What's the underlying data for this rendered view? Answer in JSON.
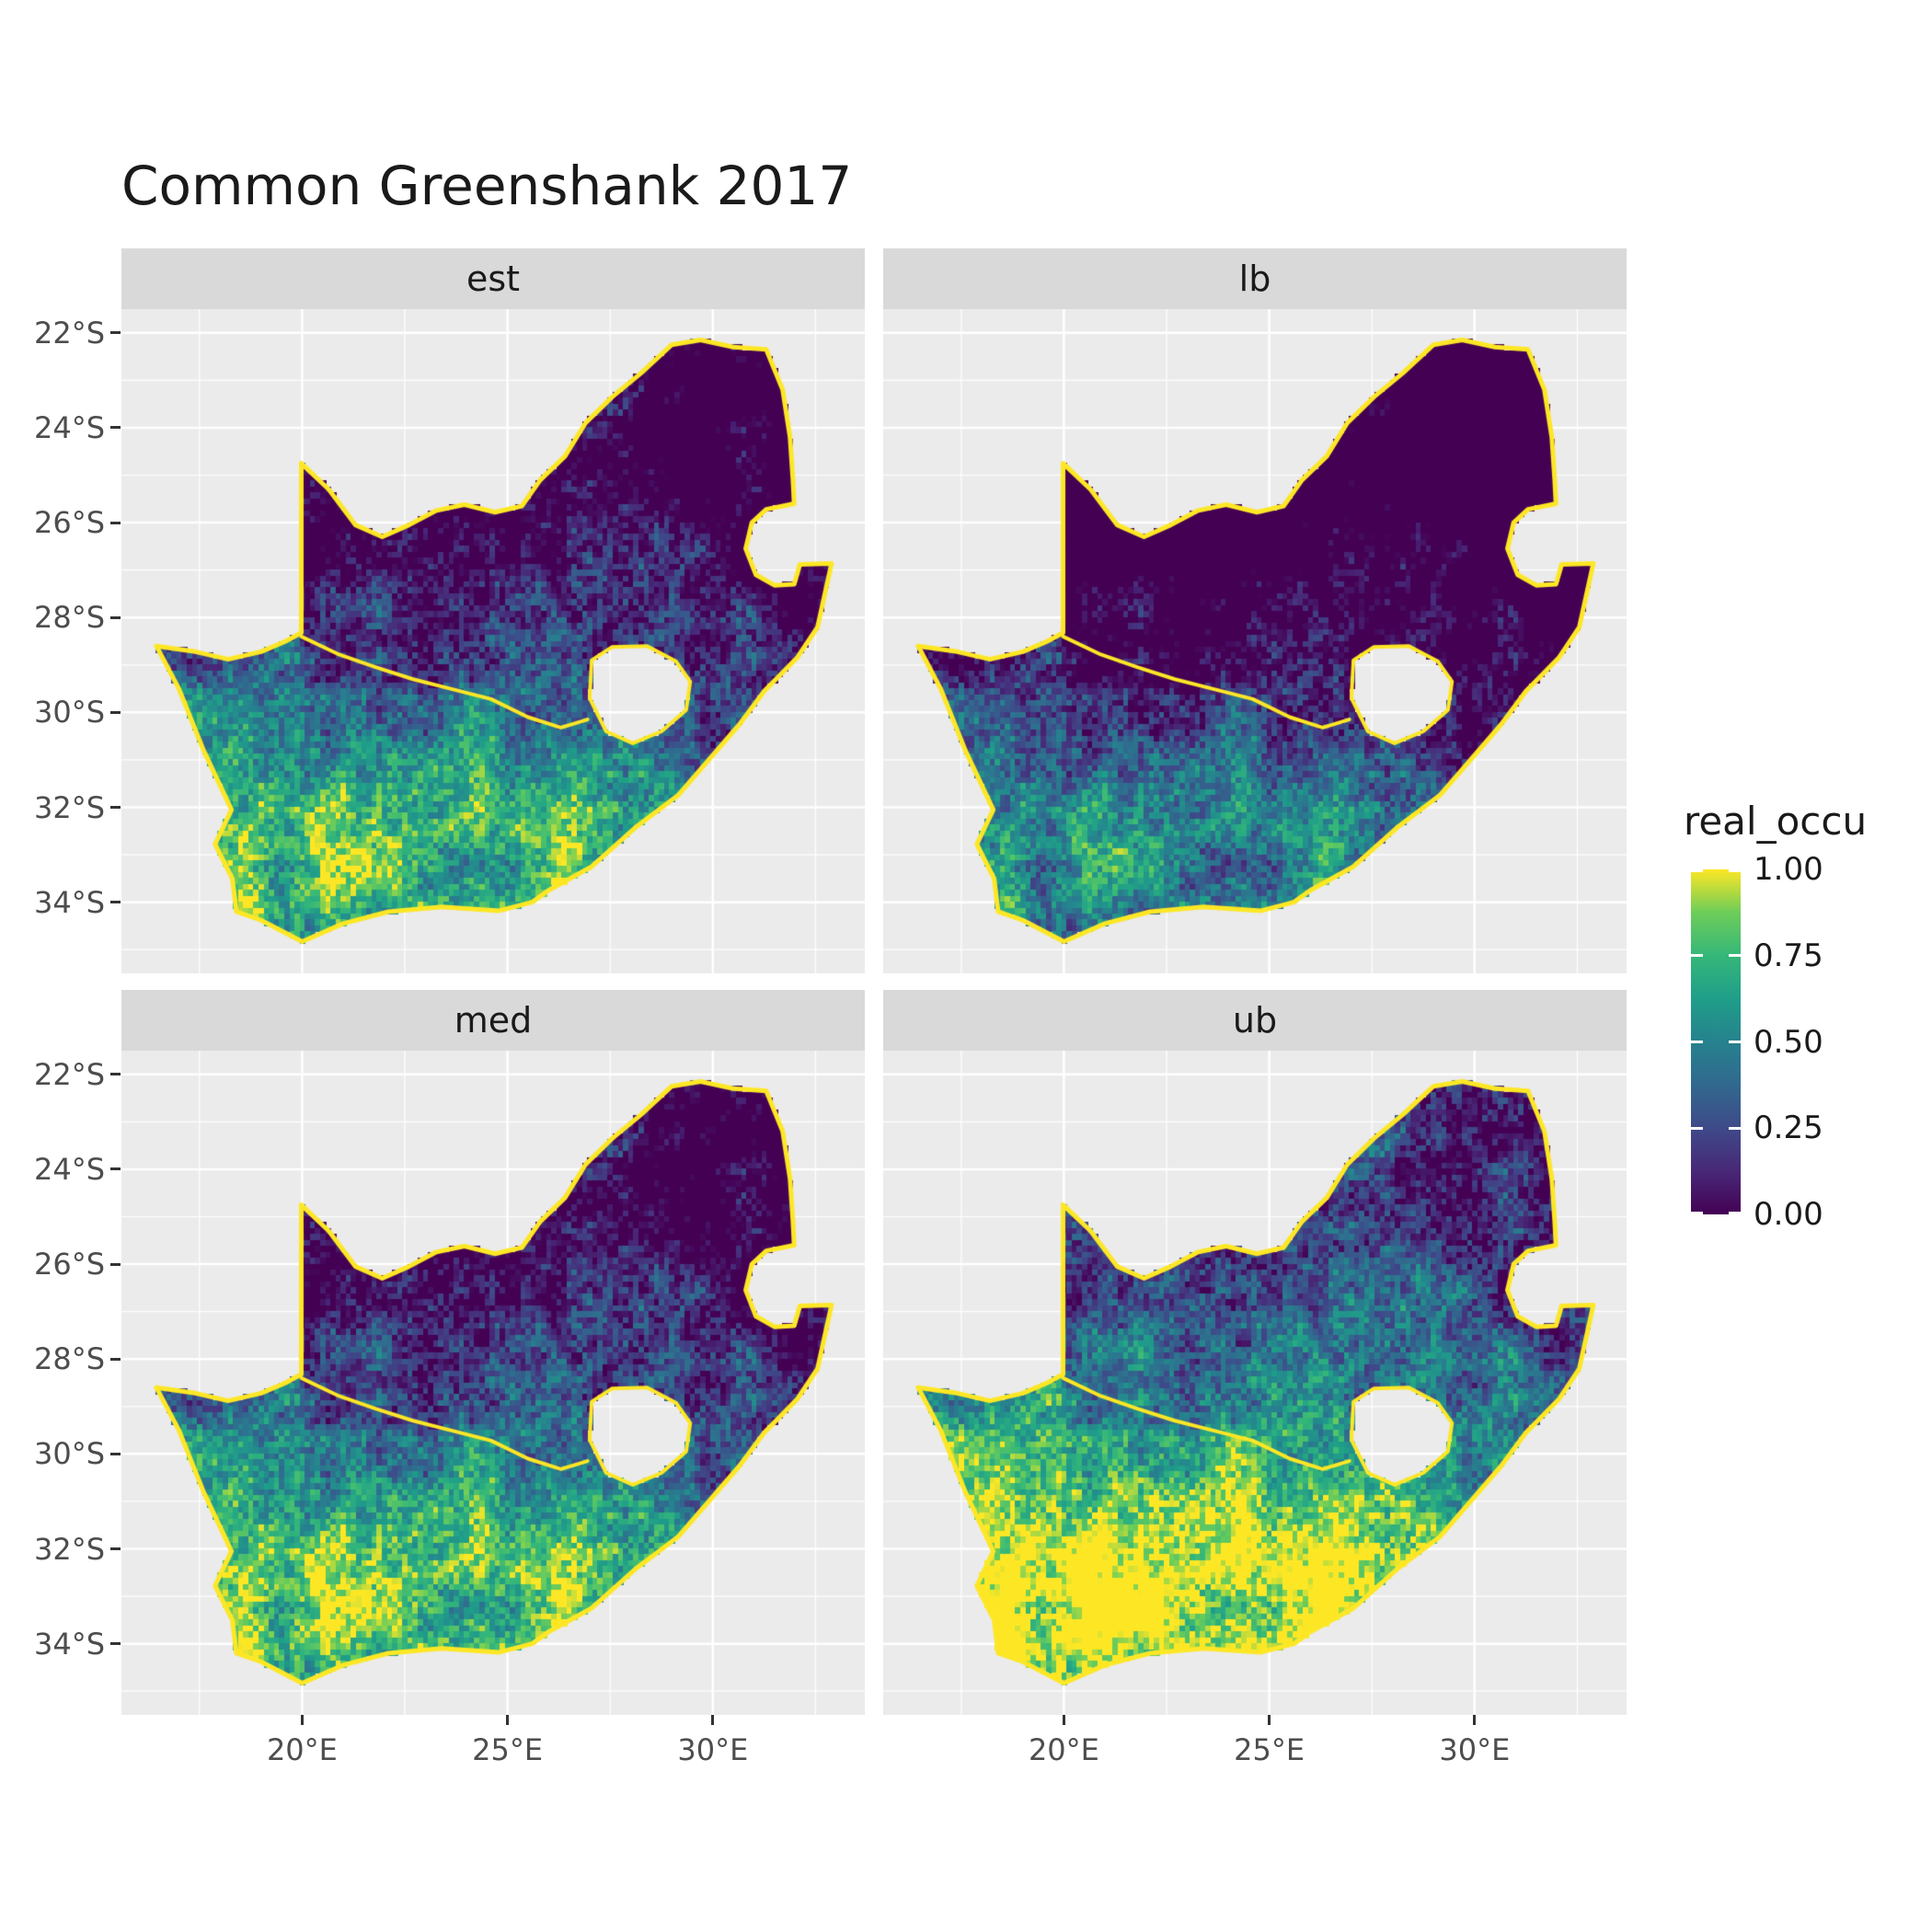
{
  "title": "Common Greenshank 2017",
  "facets": [
    {
      "label": "est"
    },
    {
      "label": "lb"
    },
    {
      "label": "med"
    },
    {
      "label": "ub"
    }
  ],
  "axes": {
    "y_tick_labels": [
      "22°S",
      "24°S",
      "26°S",
      "28°S",
      "30°S",
      "32°S",
      "34°S"
    ],
    "y_tick_values": [
      -22,
      -24,
      -26,
      -28,
      -30,
      -32,
      -34
    ],
    "x_tick_labels": [
      "20°E",
      "25°E",
      "30°E"
    ],
    "x_tick_values": [
      20,
      25,
      30
    ]
  },
  "legend": {
    "title": "real_occu",
    "tick_labels": [
      "1.00",
      "0.75",
      "0.50",
      "0.25",
      "0.00"
    ],
    "tick_values": [
      1.0,
      0.75,
      0.5,
      0.25,
      0.0
    ]
  },
  "colors": {
    "panel_background": "#EBEBEB",
    "strip_background": "#D9D9D9",
    "gridline": "#FFFFFF",
    "axis_text": "#4D4D4D",
    "tick_mark": "#333333",
    "outline": "#FDE725",
    "viridis": [
      "#440154",
      "#482878",
      "#3E4A89",
      "#31688E",
      "#26828E",
      "#1F9E89",
      "#35B779",
      "#6DCD59",
      "#FDE725"
    ]
  },
  "chart_data": {
    "type": "heatmap",
    "subtype": "faceted raster occupancy map of South Africa",
    "title": "Common Greenshank 2017",
    "facets": [
      "est",
      "lb",
      "med",
      "ub"
    ],
    "variable": "real_occu",
    "value_range": [
      0.0,
      1.0
    ],
    "legend_breaks": [
      0.0,
      0.25,
      0.5,
      0.75,
      1.0
    ],
    "colormap": "viridis",
    "grid": "white major and minor gridlines on grey panel",
    "legend_position": "right",
    "lon_range": [
      15.6,
      33.7
    ],
    "lat_range": [
      -35.5,
      -21.5
    ],
    "x_ticks_lon": [
      20,
      25,
      30
    ],
    "y_ticks_lat": [
      -22,
      -24,
      -26,
      -28,
      -30,
      -32,
      -34
    ],
    "region": "South Africa, Lesotho shown as hole, coastline and borders saturate at 1.0 (yellow)",
    "facet_value_offsets": {
      "est": 0.0,
      "lb": -0.18,
      "med": 0.05,
      "ub": 0.22
    },
    "pattern_notes": "northern interior near 0 (dark purple), south-central interior near 1 (yellow); lb darkest, then est, med, ub brightest",
    "cell_size_deg": 0.125,
    "boundary_lonlat": [
      [
        16.45,
        -28.6
      ],
      [
        17.4,
        -28.72
      ],
      [
        18.2,
        -28.88
      ],
      [
        19.0,
        -28.72
      ],
      [
        19.6,
        -28.5
      ],
      [
        19.98,
        -28.32
      ],
      [
        19.98,
        -24.75
      ],
      [
        20.65,
        -25.3
      ],
      [
        21.3,
        -26.05
      ],
      [
        21.95,
        -26.3
      ],
      [
        22.6,
        -26.05
      ],
      [
        23.25,
        -25.75
      ],
      [
        23.95,
        -25.62
      ],
      [
        24.7,
        -25.78
      ],
      [
        25.35,
        -25.65
      ],
      [
        25.8,
        -25.1
      ],
      [
        26.4,
        -24.6
      ],
      [
        26.9,
        -23.9
      ],
      [
        27.55,
        -23.35
      ],
      [
        28.25,
        -22.85
      ],
      [
        29.0,
        -22.25
      ],
      [
        29.7,
        -22.15
      ],
      [
        30.5,
        -22.3
      ],
      [
        31.3,
        -22.35
      ],
      [
        31.7,
        -23.2
      ],
      [
        31.88,
        -24.2
      ],
      [
        31.95,
        -25.1
      ],
      [
        31.98,
        -25.6
      ],
      [
        31.3,
        -25.72
      ],
      [
        30.95,
        -26.0
      ],
      [
        30.8,
        -26.55
      ],
      [
        31.05,
        -27.1
      ],
      [
        31.5,
        -27.32
      ],
      [
        31.98,
        -27.3
      ],
      [
        32.12,
        -26.88
      ],
      [
        32.89,
        -26.86
      ],
      [
        32.55,
        -28.2
      ],
      [
        32.05,
        -28.85
      ],
      [
        31.25,
        -29.55
      ],
      [
        30.65,
        -30.25
      ],
      [
        29.95,
        -30.95
      ],
      [
        29.15,
        -31.75
      ],
      [
        28.15,
        -32.4
      ],
      [
        27.05,
        -33.25
      ],
      [
        26.0,
        -33.75
      ],
      [
        25.6,
        -34.0
      ],
      [
        24.8,
        -34.18
      ],
      [
        23.4,
        -34.1
      ],
      [
        22.1,
        -34.2
      ],
      [
        21.0,
        -34.45
      ],
      [
        20.0,
        -34.83
      ],
      [
        19.0,
        -34.38
      ],
      [
        18.4,
        -34.2
      ],
      [
        18.3,
        -33.5
      ],
      [
        17.88,
        -32.78
      ],
      [
        18.28,
        -32.05
      ],
      [
        17.6,
        -30.8
      ],
      [
        17.0,
        -29.5
      ],
      [
        16.45,
        -28.6
      ]
    ],
    "lesotho_hole_lonlat": [
      [
        27.05,
        -28.9
      ],
      [
        27.55,
        -28.62
      ],
      [
        28.4,
        -28.6
      ],
      [
        29.1,
        -28.92
      ],
      [
        29.45,
        -29.35
      ],
      [
        29.35,
        -29.95
      ],
      [
        28.75,
        -30.4
      ],
      [
        28.05,
        -30.65
      ],
      [
        27.4,
        -30.4
      ],
      [
        27.0,
        -29.7
      ]
    ],
    "river_line_lonlat": [
      [
        19.98,
        -28.4
      ],
      [
        20.9,
        -28.78
      ],
      [
        21.8,
        -29.05
      ],
      [
        22.7,
        -29.3
      ],
      [
        23.7,
        -29.52
      ],
      [
        24.6,
        -29.72
      ],
      [
        25.5,
        -30.1
      ],
      [
        26.3,
        -30.32
      ],
      [
        26.95,
        -30.15
      ]
    ]
  }
}
